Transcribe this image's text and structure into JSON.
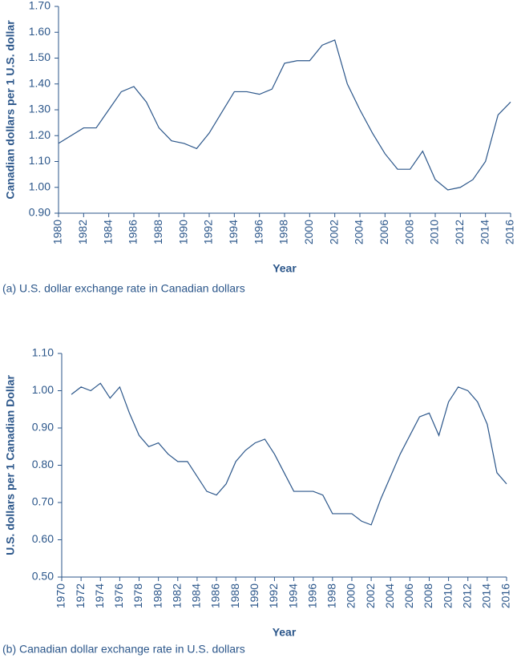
{
  "chart_data": [
    {
      "type": "line",
      "caption": "(a) U.S. dollar exchange rate in Canadian dollars",
      "xlabel": "Year",
      "ylabel": "Canadian dollars per 1 U.S. dollar",
      "color": "#2b568a",
      "x": [
        1980,
        1981,
        1982,
        1983,
        1984,
        1985,
        1986,
        1987,
        1988,
        1989,
        1990,
        1991,
        1992,
        1993,
        1994,
        1995,
        1996,
        1997,
        1998,
        1999,
        2000,
        2001,
        2002,
        2003,
        2004,
        2005,
        2006,
        2007,
        2008,
        2009,
        2010,
        2011,
        2012,
        2013,
        2014,
        2015,
        2016
      ],
      "values": [
        1.17,
        1.2,
        1.23,
        1.23,
        1.3,
        1.37,
        1.39,
        1.33,
        1.23,
        1.18,
        1.17,
        1.15,
        1.21,
        1.29,
        1.37,
        1.37,
        1.36,
        1.38,
        1.48,
        1.49,
        1.49,
        1.55,
        1.57,
        1.4,
        1.3,
        1.21,
        1.13,
        1.07,
        1.07,
        1.14,
        1.03,
        0.99,
        1.0,
        1.03,
        1.1,
        1.28,
        1.33
      ],
      "xlim": [
        1980,
        2016
      ],
      "xticks": [
        1980,
        1982,
        1984,
        1986,
        1988,
        1990,
        1992,
        1994,
        1996,
        1998,
        2000,
        2002,
        2004,
        2006,
        2008,
        2010,
        2012,
        2014,
        2016
      ],
      "ylim": [
        0.9,
        1.7
      ],
      "yticks": [
        {
          "value": 0.9,
          "label": "0.90"
        },
        {
          "value": 1.0,
          "label": "1.00"
        },
        {
          "value": 1.1,
          "label": "1.10"
        },
        {
          "value": 1.2,
          "label": "1.20"
        },
        {
          "value": 1.3,
          "label": "1.30"
        },
        {
          "value": 1.4,
          "label": "1.40"
        },
        {
          "value": 1.5,
          "label": "1.50"
        },
        {
          "value": 1.6,
          "label": "1.60"
        },
        {
          "value": 1.7,
          "label": "1.70"
        }
      ]
    },
    {
      "type": "line",
      "caption": "(b) Canadian dollar exchange rate in U.S. dollars",
      "xlabel": "Year",
      "ylabel": "U.S. dollars per 1 Canadian Dollar",
      "color": "#2b568a",
      "x": [
        1971,
        1972,
        1973,
        1974,
        1975,
        1976,
        1977,
        1978,
        1979,
        1980,
        1981,
        1982,
        1983,
        1984,
        1985,
        1986,
        1987,
        1988,
        1989,
        1990,
        1991,
        1992,
        1993,
        1994,
        1995,
        1996,
        1997,
        1998,
        1999,
        2000,
        2001,
        2002,
        2003,
        2004,
        2005,
        2006,
        2007,
        2008,
        2009,
        2010,
        2011,
        2012,
        2013,
        2014,
        2015,
        2016
      ],
      "values": [
        0.99,
        1.01,
        1.0,
        1.02,
        0.98,
        1.01,
        0.94,
        0.88,
        0.85,
        0.86,
        0.83,
        0.81,
        0.81,
        0.77,
        0.73,
        0.72,
        0.75,
        0.81,
        0.84,
        0.86,
        0.87,
        0.83,
        0.78,
        0.73,
        0.73,
        0.73,
        0.72,
        0.67,
        0.67,
        0.67,
        0.65,
        0.64,
        0.71,
        0.77,
        0.83,
        0.88,
        0.93,
        0.94,
        0.88,
        0.97,
        1.01,
        1.0,
        0.97,
        0.91,
        0.78,
        0.75
      ],
      "xlim": [
        1970,
        2016
      ],
      "xticks": [
        1970,
        1972,
        1974,
        1976,
        1978,
        1980,
        1982,
        1984,
        1986,
        1988,
        1990,
        1992,
        1994,
        1996,
        1998,
        2000,
        2002,
        2004,
        2006,
        2008,
        2010,
        2012,
        2014,
        2016
      ],
      "ylim": [
        0.5,
        1.1
      ],
      "yticks": [
        {
          "value": 0.5,
          "label": "0.50"
        },
        {
          "value": 0.6,
          "label": "0.60"
        },
        {
          "value": 0.7,
          "label": "0.70"
        },
        {
          "value": 0.8,
          "label": "0.80"
        },
        {
          "value": 0.9,
          "label": "0.90"
        },
        {
          "value": 1.0,
          "label": "1.00"
        },
        {
          "value": 1.1,
          "label": "1.10"
        }
      ]
    }
  ]
}
